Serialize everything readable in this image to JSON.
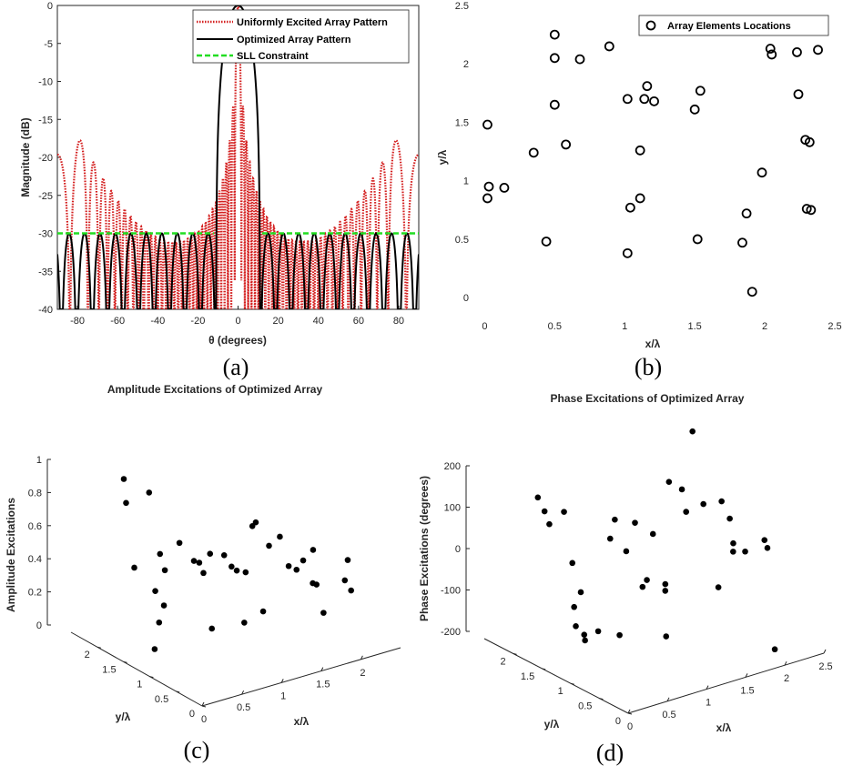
{
  "chart_data": [
    {
      "panel": "(a)",
      "type": "line",
      "title": "",
      "xlabel": "θ (degrees)",
      "ylabel": "Magnitude (dB)",
      "xlim": [
        -90,
        90
      ],
      "ylim": [
        -40,
        0
      ],
      "xticks": [
        "-80",
        "-60",
        "-40",
        "-20",
        "0",
        "20",
        "40",
        "60",
        "80"
      ],
      "yticks": [
        "0",
        "-5",
        "-10",
        "-15",
        "-20",
        "-25",
        "-30",
        "-35",
        "-40"
      ],
      "legend_position": "top-right",
      "series": [
        {
          "name": "Uniformly Excited Array Pattern",
          "color": "#d42020",
          "style": "dotted",
          "peak_db": 0,
          "mainlobe_halfwidth_deg": 4,
          "first_sidelobe_db": -13.5
        },
        {
          "name": "Optimized Array Pattern",
          "color": "#000000",
          "style": "solid",
          "peak_db": 0,
          "mainlobe_halfwidth_deg": 11,
          "sidelobe_peak_db": -30
        },
        {
          "name": "SLL Constraint",
          "color": "#22dd22",
          "style": "dashed",
          "x": [
            -90,
            -12,
            12,
            90
          ],
          "y": [
            -30,
            -30,
            -30,
            -30
          ]
        }
      ]
    },
    {
      "panel": "(b)",
      "type": "scatter",
      "xlabel": "x/λ",
      "ylabel": "y/λ",
      "xlim": [
        -0.1,
        2.5
      ],
      "ylim": [
        -0.1,
        2.5
      ],
      "xticks": [
        "0",
        "0.5",
        "1",
        "1.5",
        "2",
        "2.5"
      ],
      "yticks": [
        "0",
        "0.5",
        "1",
        "1.5",
        "2",
        "2.5"
      ],
      "legend_position": "top-right",
      "series": [
        {
          "name": "Array Elements Locations",
          "marker": "circle-open",
          "points": [
            [
              0.02,
              1.48
            ],
            [
              0.03,
              0.95
            ],
            [
              0.02,
              0.85
            ],
            [
              0.14,
              0.94
            ],
            [
              0.35,
              1.24
            ],
            [
              0.44,
              0.48
            ],
            [
              0.5,
              2.25
            ],
            [
              0.5,
              2.05
            ],
            [
              0.5,
              1.65
            ],
            [
              0.58,
              1.31
            ],
            [
              0.68,
              2.04
            ],
            [
              0.89,
              2.15
            ],
            [
              1.02,
              1.7
            ],
            [
              1.02,
              0.38
            ],
            [
              1.04,
              0.77
            ],
            [
              1.11,
              1.26
            ],
            [
              1.11,
              0.85
            ],
            [
              1.14,
              1.7
            ],
            [
              1.16,
              1.81
            ],
            [
              1.21,
              1.68
            ],
            [
              1.5,
              1.61
            ],
            [
              1.52,
              0.5
            ],
            [
              1.54,
              1.77
            ],
            [
              1.84,
              0.47
            ],
            [
              1.87,
              0.72
            ],
            [
              1.91,
              0.05
            ],
            [
              1.98,
              1.07
            ],
            [
              2.04,
              2.13
            ],
            [
              2.05,
              2.08
            ],
            [
              2.23,
              2.1
            ],
            [
              2.24,
              1.74
            ],
            [
              2.29,
              1.35
            ],
            [
              2.32,
              1.33
            ],
            [
              2.3,
              0.76
            ],
            [
              2.33,
              0.75
            ],
            [
              2.38,
              2.12
            ]
          ]
        }
      ]
    },
    {
      "panel": "(c)",
      "type": "scatter",
      "title": "Amplitude Excitations of Optimized Array",
      "xlabel": "x/λ",
      "ylabel": "y/λ",
      "zlabel": "Amplitude Excitations",
      "xticks": [
        "0",
        "0.5",
        "1",
        "1.5",
        "2"
      ],
      "yticks": [
        "0",
        "0.5",
        "1",
        "1.5",
        "2"
      ],
      "zticks": [
        "0",
        "0.2",
        "0.4",
        "0.6",
        "0.8",
        "1"
      ],
      "zlim": [
        0,
        1
      ],
      "z": [
        0.96,
        0.17,
        0.35,
        0.42,
        0.55,
        0.32,
        0.9,
        0.4,
        0.33,
        0.67,
        0.83,
        0.41,
        0.43,
        0.36,
        0.22,
        0.53,
        0.5,
        0.34,
        0.38,
        0.45,
        0.32,
        0.52,
        0.31,
        0.22,
        0.35,
        0.42,
        0.41,
        0.42,
        0.45,
        0.28,
        0.22,
        0.38,
        0.17,
        0.3,
        0.42,
        0.31
      ]
    },
    {
      "panel": "(d)",
      "type": "scatter",
      "title": "Phase Excitations of Optimized Array",
      "xlabel": "x/λ",
      "ylabel": "y/λ",
      "zlabel": "Phase Excitations (degrees)",
      "xticks": [
        "0",
        "0.5",
        "1",
        "1.5",
        "2",
        "2.5"
      ],
      "yticks": [
        "0",
        "0.5",
        "1",
        "1.5",
        "2"
      ],
      "zticks": [
        "-200",
        "-100",
        "0",
        "100",
        "200"
      ],
      "zlim": [
        -200,
        200
      ],
      "z": [
        180,
        -60,
        30,
        -100,
        -120,
        200,
        130,
        80,
        15,
        -130,
        100,
        -150,
        40,
        200,
        -20,
        -50,
        -140,
        -200,
        70,
        0,
        30,
        -20,
        -95,
        50,
        30,
        -160,
        120,
        -160,
        90,
        60,
        50,
        40,
        -20,
        30,
        10,
        190
      ]
    }
  ],
  "captions": {
    "a": "(a)",
    "b": "(b)",
    "c": "(c)",
    "d": "(d)"
  }
}
